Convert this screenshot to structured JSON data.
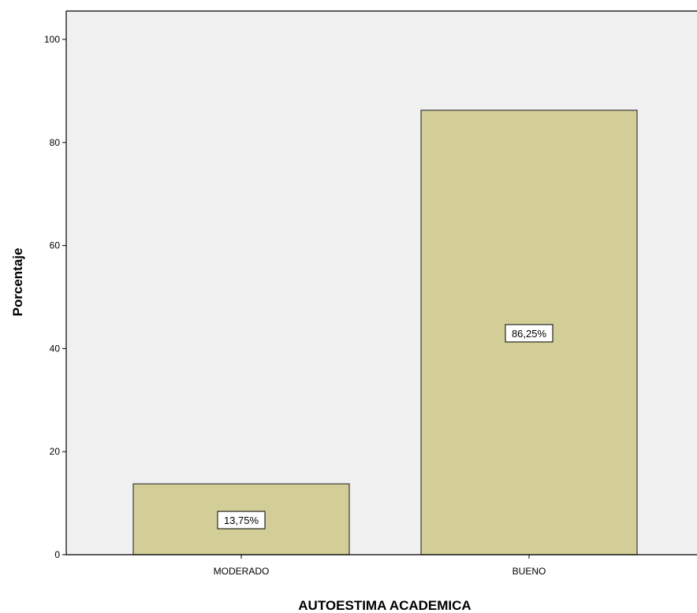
{
  "chart_data": {
    "type": "bar",
    "categories": [
      "MODERADO",
      "BUENO"
    ],
    "values": [
      13.75,
      86.25
    ],
    "data_labels": [
      "13,75%",
      "86,25%"
    ],
    "title": "",
    "xlabel": "AUTOESTIMA ACADEMICA",
    "ylabel": "Porcentaje",
    "ylim": [
      0,
      100
    ],
    "yticks": [
      0,
      20,
      40,
      60,
      80,
      100
    ],
    "grid": false,
    "legend": "none"
  },
  "colors": {
    "plot_background": "#f0f0f0",
    "bar_fill": "#d3ce97",
    "bar_stroke": "#3a3a3a",
    "axis": "#000000"
  }
}
